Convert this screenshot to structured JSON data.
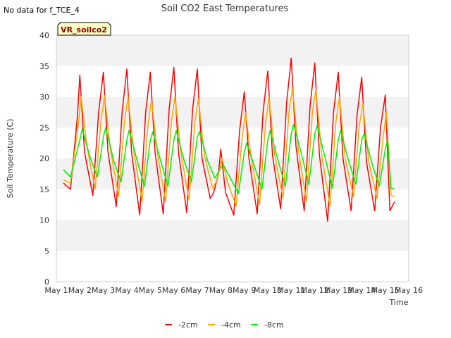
{
  "no_data_note": "No data for f_TCE_4",
  "site_badge": "VR_soilco2",
  "chart_data": {
    "type": "line",
    "title": "Soil CO2 East Temperatures",
    "xlabel": "Time",
    "ylabel": "Soil Temperature (C)",
    "ylim": [
      0,
      40
    ],
    "yticks": [
      0,
      5,
      10,
      15,
      20,
      25,
      30,
      35,
      40
    ],
    "xlim": [
      1,
      16
    ],
    "xtick_labels": [
      "May 1",
      "May 2",
      "May 3",
      "May 4",
      "May 5",
      "May 6",
      "May 7",
      "May 8",
      "May 9",
      "May 10",
      "May 11",
      "May 12",
      "May 13",
      "May 14",
      "May 15",
      "May 16"
    ],
    "legend_position": "bottom-center",
    "grid": "alternating horizontal bands",
    "series": [
      {
        "name": "-2cm",
        "color": "#ff0000",
        "x": [
          1.3,
          1.45,
          1.6,
          1.9,
          2.0,
          2.2,
          2.55,
          2.8,
          3.0,
          3.2,
          3.55,
          3.8,
          4.0,
          4.2,
          4.55,
          4.8,
          5.0,
          5.2,
          5.55,
          5.8,
          6.0,
          6.2,
          6.55,
          6.8,
          7.0,
          7.2,
          7.55,
          7.7,
          7.9,
          8.0,
          8.2,
          8.55,
          8.8,
          9.0,
          9.2,
          9.55,
          9.8,
          10.0,
          10.2,
          10.55,
          10.8,
          11.0,
          11.2,
          11.55,
          11.8,
          12.0,
          12.2,
          12.55,
          12.8,
          13.0,
          13.2,
          13.55,
          13.8,
          14.0,
          14.2,
          14.55,
          14.8,
          15.0,
          15.2,
          15.4
        ],
        "y": [
          16.0,
          15.5,
          15.0,
          27.0,
          33.5,
          21.0,
          14.0,
          27.5,
          34.0,
          21.0,
          12.2,
          27.5,
          34.5,
          21.0,
          10.8,
          27.5,
          34.0,
          21.0,
          11.0,
          28.0,
          34.8,
          21.0,
          11.2,
          28.0,
          34.5,
          20.0,
          13.5,
          14.5,
          17.5,
          21.5,
          14.5,
          10.8,
          24.5,
          30.8,
          20.0,
          11.0,
          27.5,
          34.2,
          20.5,
          11.8,
          29.0,
          36.3,
          22.0,
          11.5,
          28.5,
          35.5,
          20.5,
          9.8,
          27.5,
          34.0,
          20.0,
          11.5,
          27.0,
          33.2,
          19.5,
          11.5,
          25.0,
          30.3,
          11.5,
          13.0
        ]
      },
      {
        "name": "-4cm",
        "color": "#ffa500",
        "x": [
          1.3,
          1.6,
          1.95,
          2.05,
          2.3,
          2.65,
          2.9,
          3.05,
          3.3,
          3.65,
          3.9,
          4.05,
          4.3,
          4.65,
          4.9,
          5.05,
          5.3,
          5.65,
          5.9,
          6.05,
          6.3,
          6.65,
          6.9,
          7.05,
          7.3,
          7.65,
          7.85,
          8.05,
          8.3,
          8.65,
          8.9,
          9.05,
          9.3,
          9.65,
          9.9,
          10.05,
          10.3,
          10.65,
          10.9,
          11.05,
          11.3,
          11.65,
          11.9,
          12.05,
          12.3,
          12.65,
          12.9,
          13.05,
          13.3,
          13.65,
          13.9,
          14.05,
          14.3,
          14.65,
          14.9,
          15.05,
          15.25,
          15.4
        ],
        "y": [
          16.5,
          16.0,
          26.0,
          30.0,
          22.0,
          15.0,
          26.0,
          30.2,
          21.5,
          13.8,
          26.0,
          30.0,
          21.0,
          13.0,
          25.5,
          29.5,
          21.0,
          13.0,
          26.0,
          30.0,
          21.0,
          13.2,
          26.0,
          29.7,
          20.5,
          15.2,
          16.5,
          20.0,
          16.0,
          12.3,
          23.0,
          27.5,
          20.0,
          12.5,
          25.5,
          30.0,
          20.5,
          13.5,
          27.5,
          31.5,
          21.5,
          13.0,
          27.5,
          31.2,
          20.5,
          12.2,
          26.0,
          30.0,
          20.0,
          13.8,
          25.5,
          28.8,
          19.5,
          13.5,
          23.0,
          27.5,
          14.0,
          13.8
        ]
      },
      {
        "name": "-8cm",
        "color": "#00ee00",
        "x": [
          1.3,
          1.6,
          2.0,
          2.1,
          2.45,
          2.75,
          3.0,
          3.1,
          3.45,
          3.75,
          4.0,
          4.1,
          4.45,
          4.75,
          5.0,
          5.1,
          5.45,
          5.75,
          6.0,
          6.1,
          6.45,
          6.75,
          7.0,
          7.1,
          7.45,
          7.75,
          8.0,
          8.1,
          8.45,
          8.75,
          9.0,
          9.1,
          9.45,
          9.75,
          10.0,
          10.1,
          10.45,
          10.75,
          11.0,
          11.1,
          11.45,
          11.75,
          12.0,
          12.1,
          12.45,
          12.75,
          13.0,
          13.1,
          13.45,
          13.75,
          14.0,
          14.1,
          14.45,
          14.75,
          15.0,
          15.1,
          15.25,
          15.4
        ],
        "y": [
          18.2,
          17.0,
          23.0,
          24.8,
          20.0,
          17.0,
          23.5,
          25.0,
          19.5,
          16.2,
          23.0,
          24.6,
          19.5,
          15.5,
          23.0,
          24.3,
          19.5,
          15.5,
          23.0,
          24.5,
          19.5,
          16.2,
          23.5,
          24.4,
          19.5,
          16.8,
          18.5,
          19.0,
          16.5,
          14.3,
          21.0,
          22.5,
          18.5,
          15.0,
          23.0,
          24.5,
          19.5,
          15.5,
          24.0,
          25.5,
          20.5,
          15.8,
          24.0,
          25.3,
          20.0,
          15.2,
          23.0,
          24.5,
          19.5,
          15.8,
          23.0,
          24.0,
          19.0,
          15.5,
          21.5,
          23.0,
          15.2,
          15.0
        ]
      }
    ]
  }
}
